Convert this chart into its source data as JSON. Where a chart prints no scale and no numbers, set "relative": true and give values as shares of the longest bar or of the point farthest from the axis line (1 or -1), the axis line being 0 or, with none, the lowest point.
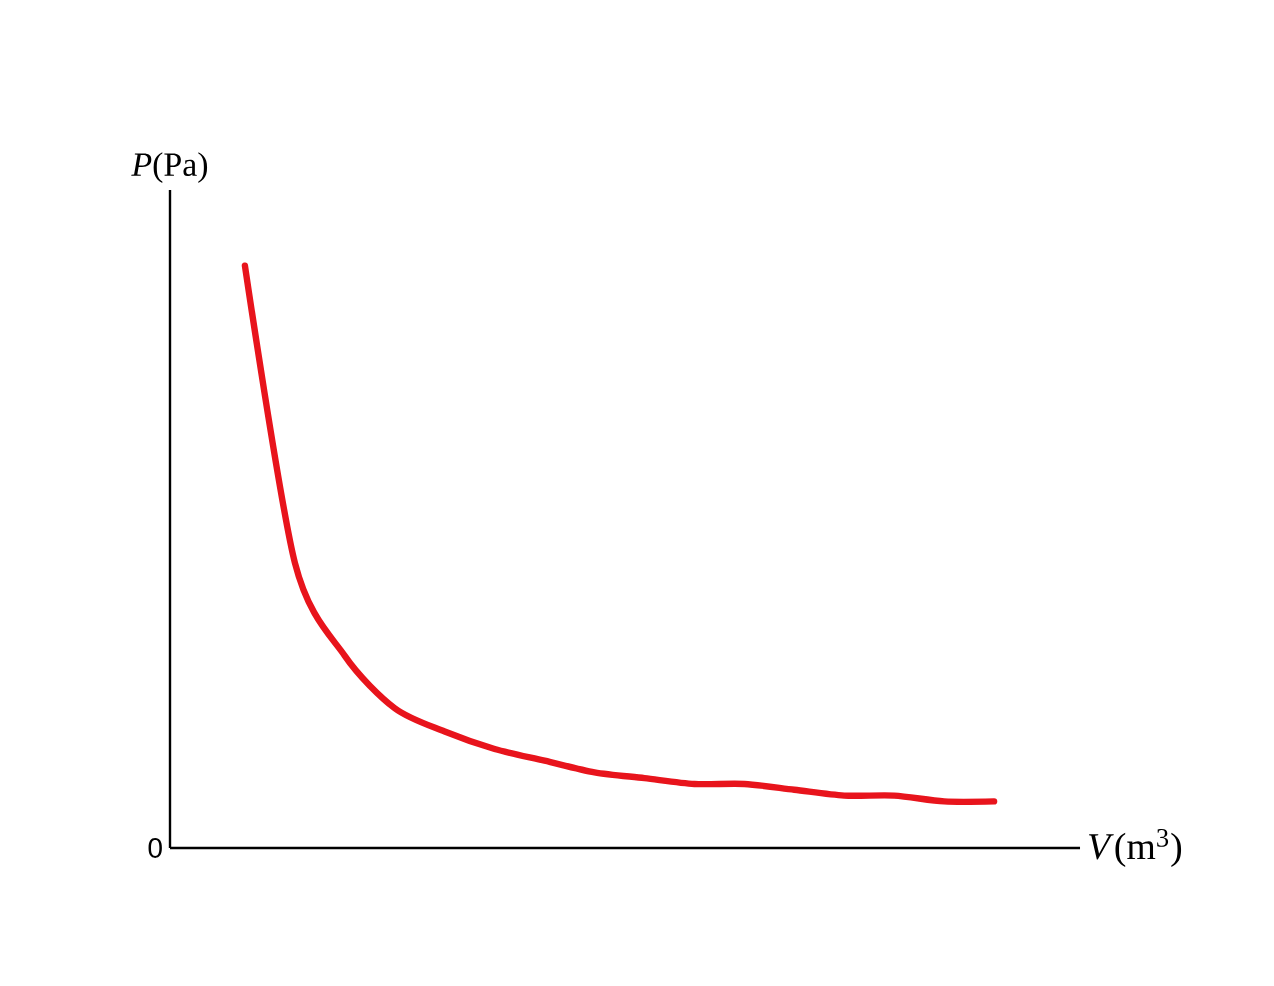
{
  "chart_data": {
    "type": "line",
    "relative": true,
    "xlabel": "*V*(m$^{3}$)",
    "ylabel": "*P*(Pa)",
    "annotations": [
      "0"
    ],
    "categories": [
      null,
      null,
      null,
      null,
      null,
      null,
      null,
      null,
      null,
      null,
      null,
      null,
      null,
      null,
      null,
      null
    ],
    "series": [
      {
        "color": "#e8141c",
        "values": [
          1,
          0.49,
          0.33,
          0.24,
          0.2,
          0.17,
          0.15,
          0.13,
          0.12,
          0.11,
          0.11,
          0.1,
          0.09,
          0.09,
          0.08,
          0.08
        ]
      }
    ],
    "marker": "none",
    "line_style": "solid"
  }
}
